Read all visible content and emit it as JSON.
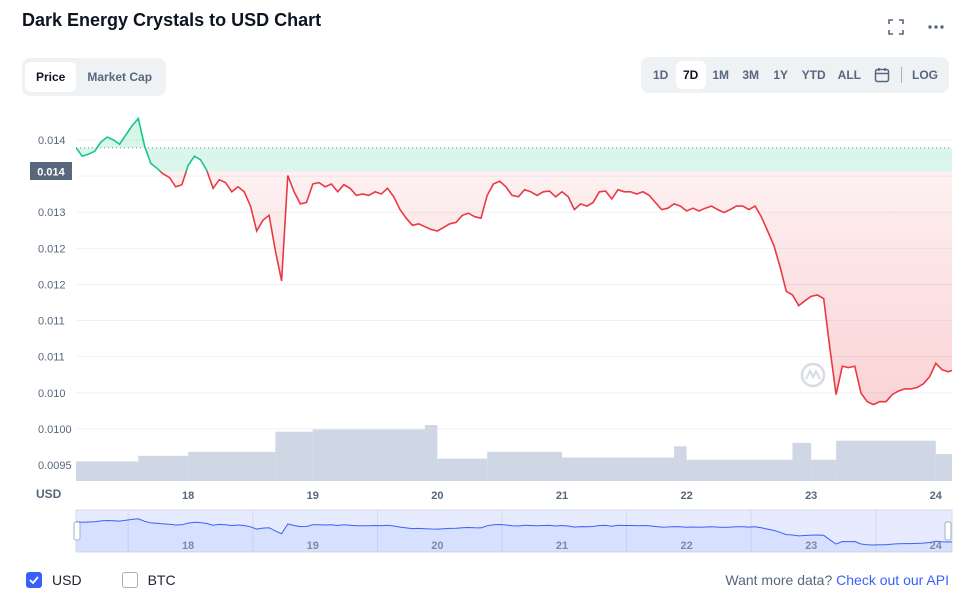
{
  "title": "Dark Energy Crystals to USD Chart",
  "tabs": [
    {
      "label": "Price",
      "active": true
    },
    {
      "label": "Market Cap",
      "active": false
    }
  ],
  "ranges": [
    "1D",
    "7D",
    "1M",
    "3M",
    "1Y",
    "YTD",
    "ALL"
  ],
  "active_range": "7D",
  "log_label": "LOG",
  "legend": {
    "usd": "USD",
    "btc": "BTC"
  },
  "api_text": "Want more data?",
  "api_link": "Check out our API",
  "colors": {
    "up": "#16c784",
    "down": "#ea3943",
    "volume": "#cfd6e4",
    "navigator": "#3861fb"
  },
  "chart_data": {
    "type": "line",
    "ylabel": "USD",
    "yticks": [
      "0.014",
      "0.013",
      "0.013",
      "0.012",
      "0.012",
      "0.011",
      "0.011",
      "0.010",
      "0.0100",
      "0.0095"
    ],
    "ylim": [
      0.0094,
      0.0146
    ],
    "current_price_label": "0.014",
    "reference_price": 0.01407,
    "x_ticks": [
      "18",
      "19",
      "20",
      "21",
      "22",
      "23",
      "24"
    ],
    "x_tick_days": [
      18,
      19,
      20,
      21,
      22,
      23,
      24
    ],
    "x_range": [
      17.1,
      24.13
    ],
    "price": [
      [
        17.1,
        0.01407
      ],
      [
        17.15,
        0.01395
      ],
      [
        17.2,
        0.01398
      ],
      [
        17.25,
        0.01402
      ],
      [
        17.3,
        0.01415
      ],
      [
        17.35,
        0.01422
      ],
      [
        17.4,
        0.01418
      ],
      [
        17.45,
        0.01412
      ],
      [
        17.5,
        0.01425
      ],
      [
        17.55,
        0.01438
      ],
      [
        17.6,
        0.01448
      ],
      [
        17.65,
        0.0141
      ],
      [
        17.7,
        0.01385
      ],
      [
        17.75,
        0.01378
      ],
      [
        17.8,
        0.0137
      ],
      [
        17.85,
        0.01365
      ],
      [
        17.9,
        0.01352
      ],
      [
        17.95,
        0.01355
      ],
      [
        18.0,
        0.01382
      ],
      [
        18.05,
        0.01395
      ],
      [
        18.1,
        0.0139
      ],
      [
        18.15,
        0.01375
      ],
      [
        18.2,
        0.0135
      ],
      [
        18.25,
        0.01362
      ],
      [
        18.3,
        0.01358
      ],
      [
        18.35,
        0.01345
      ],
      [
        18.4,
        0.01352
      ],
      [
        18.45,
        0.01345
      ],
      [
        18.5,
        0.01325
      ],
      [
        18.55,
        0.0129
      ],
      [
        18.6,
        0.01305
      ],
      [
        18.65,
        0.01312
      ],
      [
        18.7,
        0.01262
      ],
      [
        18.75,
        0.0122
      ],
      [
        18.8,
        0.01368
      ],
      [
        18.85,
        0.01345
      ],
      [
        18.9,
        0.01328
      ],
      [
        18.95,
        0.0133
      ],
      [
        19.0,
        0.01356
      ],
      [
        19.05,
        0.01358
      ],
      [
        19.1,
        0.01352
      ],
      [
        19.15,
        0.01356
      ],
      [
        19.2,
        0.01345
      ],
      [
        19.25,
        0.01355
      ],
      [
        19.3,
        0.0135
      ],
      [
        19.35,
        0.0134
      ],
      [
        19.4,
        0.01342
      ],
      [
        19.45,
        0.0134
      ],
      [
        19.5,
        0.01345
      ],
      [
        19.55,
        0.01342
      ],
      [
        19.6,
        0.0135
      ],
      [
        19.65,
        0.01338
      ],
      [
        19.7,
        0.0132
      ],
      [
        19.75,
        0.01308
      ],
      [
        19.8,
        0.01298
      ],
      [
        19.85,
        0.013
      ],
      [
        19.9,
        0.01296
      ],
      [
        19.95,
        0.01292
      ],
      [
        20.0,
        0.0129
      ],
      [
        20.05,
        0.01295
      ],
      [
        20.1,
        0.013
      ],
      [
        20.15,
        0.01302
      ],
      [
        20.2,
        0.01312
      ],
      [
        20.25,
        0.01315
      ],
      [
        20.3,
        0.0131
      ],
      [
        20.35,
        0.01308
      ],
      [
        20.4,
        0.0134
      ],
      [
        20.45,
        0.01356
      ],
      [
        20.5,
        0.0136
      ],
      [
        20.55,
        0.01352
      ],
      [
        20.6,
        0.0134
      ],
      [
        20.65,
        0.01338
      ],
      [
        20.7,
        0.01348
      ],
      [
        20.75,
        0.01345
      ],
      [
        20.8,
        0.0134
      ],
      [
        20.85,
        0.01345
      ],
      [
        20.9,
        0.01346
      ],
      [
        20.95,
        0.01338
      ],
      [
        21.0,
        0.01345
      ],
      [
        21.05,
        0.01338
      ],
      [
        21.1,
        0.0132
      ],
      [
        21.15,
        0.01328
      ],
      [
        21.2,
        0.01325
      ],
      [
        21.25,
        0.0133
      ],
      [
        21.3,
        0.01345
      ],
      [
        21.35,
        0.01346
      ],
      [
        21.4,
        0.01335
      ],
      [
        21.45,
        0.01348
      ],
      [
        21.5,
        0.01345
      ],
      [
        21.55,
        0.01345
      ],
      [
        21.6,
        0.01342
      ],
      [
        21.65,
        0.01345
      ],
      [
        21.7,
        0.0134
      ],
      [
        21.75,
        0.0133
      ],
      [
        21.8,
        0.0132
      ],
      [
        21.85,
        0.01322
      ],
      [
        21.9,
        0.01328
      ],
      [
        21.95,
        0.01325
      ],
      [
        22.0,
        0.01318
      ],
      [
        22.05,
        0.01322
      ],
      [
        22.1,
        0.01318
      ],
      [
        22.15,
        0.01322
      ],
      [
        22.2,
        0.01325
      ],
      [
        22.25,
        0.0132
      ],
      [
        22.3,
        0.01316
      ],
      [
        22.35,
        0.0132
      ],
      [
        22.4,
        0.01325
      ],
      [
        22.45,
        0.01325
      ],
      [
        22.5,
        0.0132
      ],
      [
        22.55,
        0.01325
      ],
      [
        22.6,
        0.0131
      ],
      [
        22.65,
        0.0129
      ],
      [
        22.7,
        0.0127
      ],
      [
        22.75,
        0.0124
      ],
      [
        22.8,
        0.01205
      ],
      [
        22.85,
        0.012
      ],
      [
        22.9,
        0.01185
      ],
      [
        22.95,
        0.01192
      ],
      [
        23.0,
        0.01198
      ],
      [
        23.05,
        0.012
      ],
      [
        23.1,
        0.01195
      ],
      [
        23.15,
        0.01125
      ],
      [
        23.2,
        0.0106
      ],
      [
        23.25,
        0.011
      ],
      [
        23.3,
        0.01098
      ],
      [
        23.35,
        0.011
      ],
      [
        23.4,
        0.01062
      ],
      [
        23.45,
        0.0105
      ],
      [
        23.5,
        0.01046
      ],
      [
        23.55,
        0.0105
      ],
      [
        23.6,
        0.0105
      ],
      [
        23.65,
        0.0106
      ],
      [
        23.7,
        0.01065
      ],
      [
        23.75,
        0.01068
      ],
      [
        23.8,
        0.01068
      ],
      [
        23.85,
        0.0107
      ],
      [
        23.9,
        0.01075
      ],
      [
        23.95,
        0.01085
      ],
      [
        24.0,
        0.01104
      ],
      [
        24.05,
        0.01095
      ],
      [
        24.1,
        0.01092
      ],
      [
        24.13,
        0.01094
      ]
    ],
    "volume_bars": [
      [
        17.1,
        17.6,
        0.35
      ],
      [
        17.6,
        18.0,
        0.45
      ],
      [
        18.0,
        18.7,
        0.52
      ],
      [
        18.7,
        19.0,
        0.88
      ],
      [
        19.0,
        19.9,
        0.92
      ],
      [
        19.9,
        20.0,
        1.0
      ],
      [
        20.0,
        20.4,
        0.4
      ],
      [
        20.4,
        21.0,
        0.52
      ],
      [
        21.0,
        21.9,
        0.42
      ],
      [
        21.9,
        22.0,
        0.62
      ],
      [
        22.0,
        22.85,
        0.38
      ],
      [
        22.85,
        23.0,
        0.68
      ],
      [
        23.0,
        23.2,
        0.38
      ],
      [
        23.2,
        24.0,
        0.72
      ],
      [
        24.0,
        24.13,
        0.48
      ]
    ]
  }
}
